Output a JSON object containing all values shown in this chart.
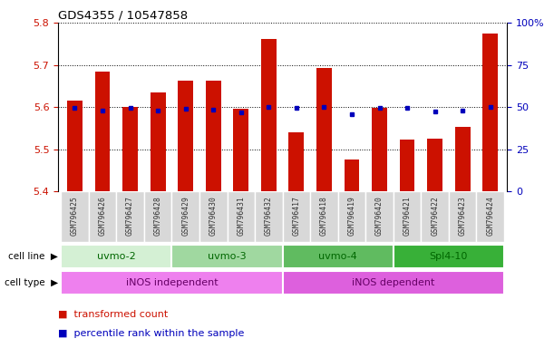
{
  "title": "GDS4355 / 10547858",
  "samples": [
    "GSM796425",
    "GSM796426",
    "GSM796427",
    "GSM796428",
    "GSM796429",
    "GSM796430",
    "GSM796431",
    "GSM796432",
    "GSM796417",
    "GSM796418",
    "GSM796419",
    "GSM796420",
    "GSM796421",
    "GSM796422",
    "GSM796423",
    "GSM796424"
  ],
  "transformed_counts": [
    5.615,
    5.685,
    5.6,
    5.635,
    5.663,
    5.663,
    5.595,
    5.762,
    5.54,
    5.693,
    5.475,
    5.597,
    5.523,
    5.525,
    5.553,
    5.775
  ],
  "percentile_values": [
    5.597,
    5.592,
    5.598,
    5.592,
    5.596,
    5.594,
    5.588,
    5.6,
    5.597,
    5.6,
    5.583,
    5.597,
    5.597,
    5.59,
    5.591,
    5.6
  ],
  "cell_lines": [
    {
      "label": "uvmo-2",
      "start": 0,
      "end": 3,
      "color": "#d4f0d4"
    },
    {
      "label": "uvmo-3",
      "start": 4,
      "end": 7,
      "color": "#a0d8a0"
    },
    {
      "label": "uvmo-4",
      "start": 8,
      "end": 11,
      "color": "#60bb60"
    },
    {
      "label": "Spl4-10",
      "start": 12,
      "end": 15,
      "color": "#38b038"
    }
  ],
  "cell_types": [
    {
      "label": "iNOS independent",
      "start": 0,
      "end": 7,
      "color": "#ee80ee"
    },
    {
      "label": "iNOS dependent",
      "start": 8,
      "end": 15,
      "color": "#dd60dd"
    }
  ],
  "ylim": [
    5.4,
    5.8
  ],
  "yticks_left": [
    5.4,
    5.5,
    5.6,
    5.7,
    5.8
  ],
  "yticks_right": [
    0,
    25,
    50,
    75,
    100
  ],
  "bar_color": "#cc1100",
  "dot_color": "#0000bb",
  "xticklabel_bg": "#d8d8d8"
}
